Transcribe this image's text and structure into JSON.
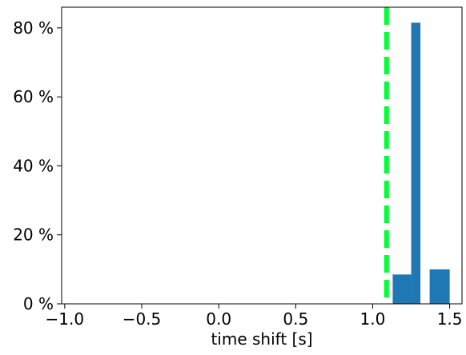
{
  "chart_data": {
    "type": "bar",
    "title": "",
    "xlabel": "time shift [s]",
    "ylabel": "",
    "xlim": [
      -1.02,
      1.58
    ],
    "ylim": [
      0,
      86
    ],
    "x_ticks": [
      -1.0,
      -0.5,
      0.0,
      0.5,
      1.0,
      1.5
    ],
    "x_tick_labels": [
      "−1.0",
      "−0.5",
      "0.0",
      "0.5",
      "1.0",
      "1.5"
    ],
    "y_ticks": [
      0,
      20,
      40,
      60,
      80
    ],
    "y_tick_labels": [
      "0 %",
      "20 %",
      "40 %",
      "60 %",
      "80 %"
    ],
    "grid": false,
    "bins": [
      {
        "x0": 1.13,
        "x1": 1.25,
        "value": 8.5
      },
      {
        "x0": 1.25,
        "x1": 1.31,
        "value": 81.5
      },
      {
        "x0": 1.31,
        "x1": 1.37,
        "value": 0
      },
      {
        "x0": 1.37,
        "x1": 1.5,
        "value": 10
      }
    ],
    "reference_line": {
      "x": 1.09,
      "style": "dashed",
      "color": "#00ff33"
    },
    "bar_color": "#1f77b4"
  }
}
